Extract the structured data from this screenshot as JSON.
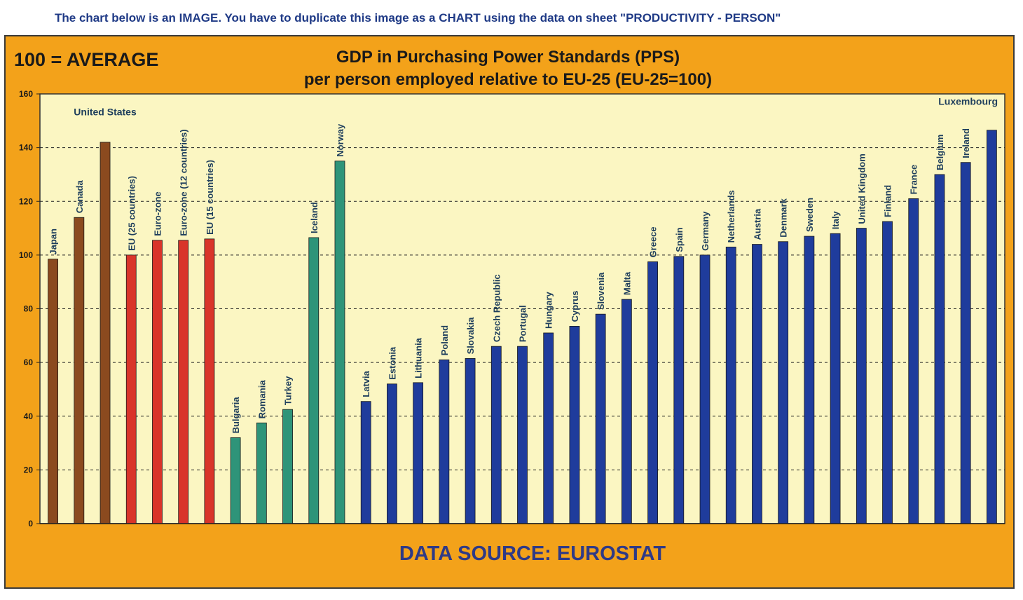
{
  "instruction": "The chart below is an IMAGE. You have to duplicate this image as a CHART using the data on sheet \"PRODUCTIVITY - PERSON\"",
  "note": "100 = AVERAGE",
  "source": "DATA SOURCE: EUROSTAT",
  "colors": {
    "frame": "#f3a21a",
    "plot": "#fbf6c2",
    "group_brown": "#8b4a1f",
    "group_red": "#d9342a",
    "group_teal": "#2e9479",
    "group_blue": "#1f3c9c",
    "label": "#1e3e5c"
  },
  "chart_data": {
    "type": "bar",
    "title": "GDP in Purchasing Power Standards (PPS)",
    "subtitle": "per person employed relative to EU-25 (EU-25=100)",
    "ylim": [
      0,
      160
    ],
    "yticks": [
      "0",
      "20",
      "40",
      "60",
      "80",
      "100",
      "120",
      "140",
      "160"
    ],
    "grid": true,
    "categories": [
      "Japan",
      "Canada",
      "United States",
      "EU (25 countries)",
      "Euro-zone",
      "Euro-zone (12 countries)",
      "EU (15 countries)",
      "Bulgaria",
      "Romania",
      "Turkey",
      "Iceland",
      "Norway",
      "Latvia",
      "Estonia",
      "Lithuania",
      "Poland",
      "Slovakia",
      "Czech Republic",
      "Portugal",
      "Hungary",
      "Cyprus",
      "Slovenia",
      "Malta",
      "Greece",
      "Spain",
      "Germany",
      "Netherlands",
      "Austria",
      "Denmark",
      "Sweden",
      "Italy",
      "United Kingdom",
      "Finland",
      "France",
      "Belgium",
      "Ireland",
      "Luxembourg"
    ],
    "values": [
      98.5,
      114,
      142,
      100,
      105.5,
      105.5,
      106,
      32,
      37.5,
      42.5,
      106.5,
      135,
      45.5,
      52,
      52.5,
      61,
      61.5,
      66,
      66,
      71,
      73.5,
      78,
      83.5,
      97.5,
      99.5,
      100,
      103,
      104,
      105,
      107,
      108,
      110,
      112.5,
      121,
      130,
      134.5,
      146.5
    ],
    "groups": [
      "brown",
      "brown",
      "brown",
      "red",
      "red",
      "red",
      "red",
      "teal",
      "teal",
      "teal",
      "teal",
      "teal",
      "blue",
      "blue",
      "blue",
      "blue",
      "blue",
      "blue",
      "blue",
      "blue",
      "blue",
      "blue",
      "blue",
      "blue",
      "blue",
      "blue",
      "blue",
      "blue",
      "blue",
      "blue",
      "blue",
      "blue",
      "blue",
      "blue",
      "blue",
      "blue",
      "blue"
    ],
    "horizontal_labels": [
      "United States",
      "Luxembourg"
    ]
  }
}
